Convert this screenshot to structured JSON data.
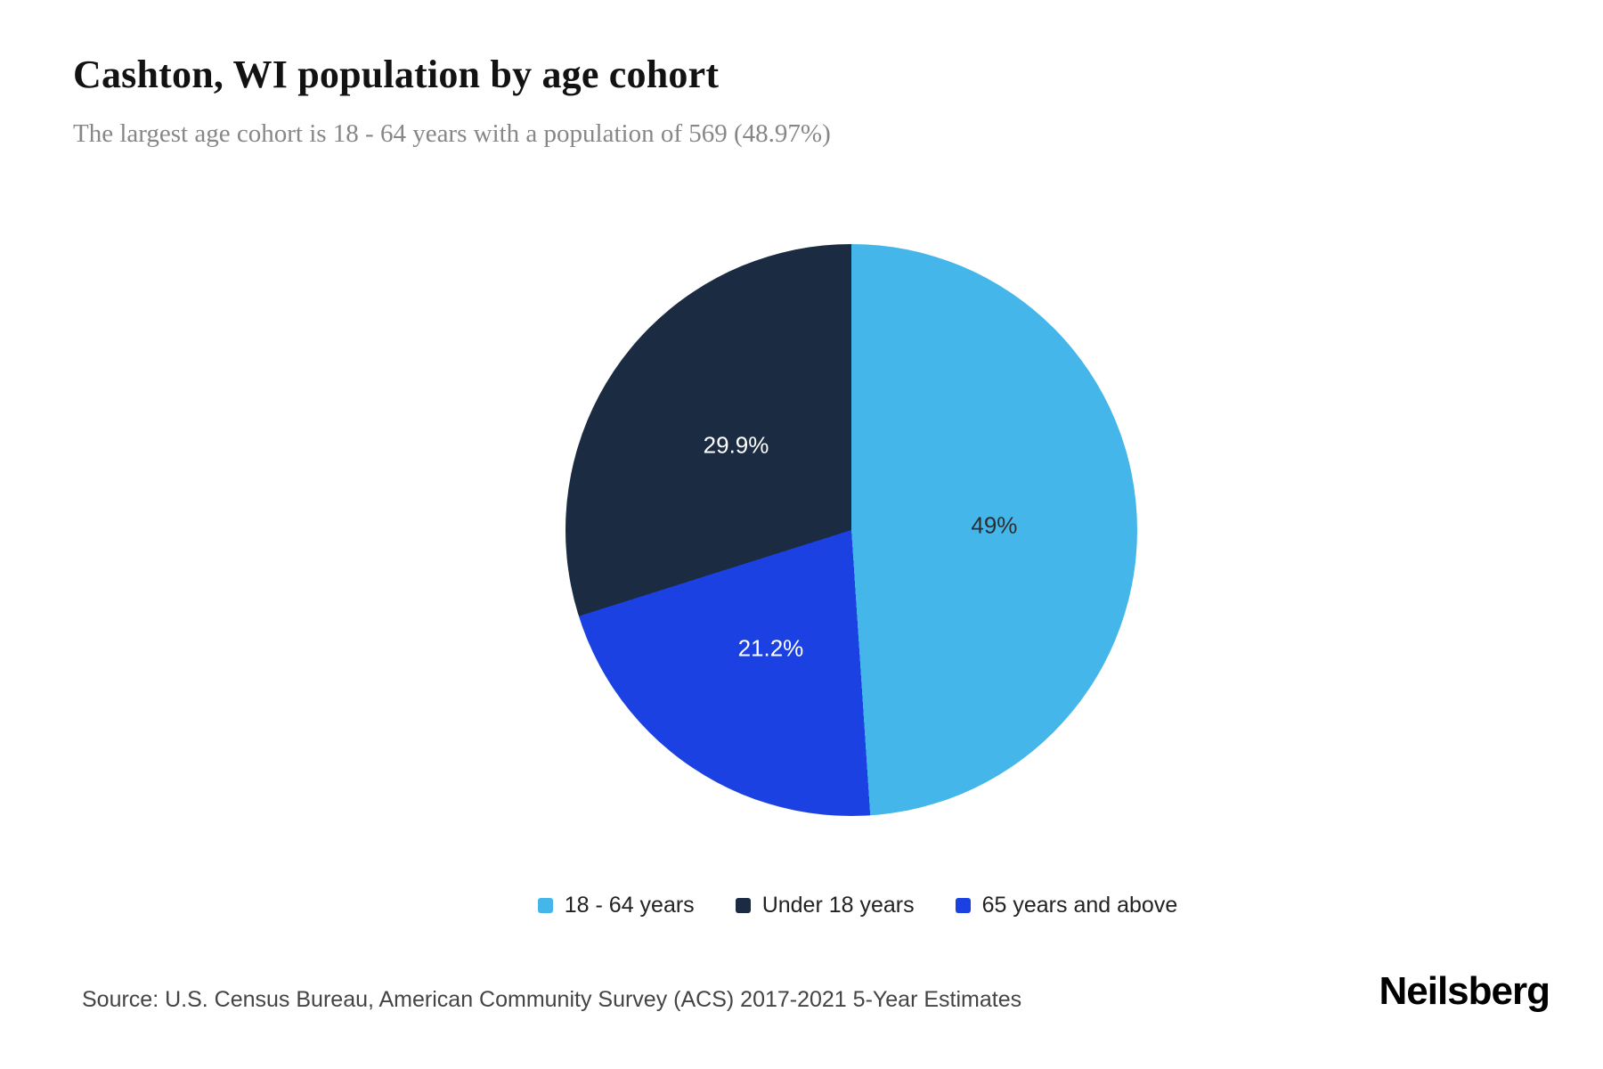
{
  "header": {
    "title": "Cashton, WI population by age cohort",
    "subtitle": "The largest age cohort is 18 - 64 years with a population of 569 (48.97%)"
  },
  "chart_data": {
    "type": "pie",
    "title": "Cashton, WI population by age cohort",
    "start_angle_deg": 0,
    "direction": "clockwise",
    "slices": [
      {
        "label": "18 - 64 years",
        "value": 49,
        "display": "49%",
        "color": "#45B6EA",
        "label_color": "#2d2d2d"
      },
      {
        "label": "65 years and above",
        "value": 21.2,
        "display": "21.2%",
        "color": "#1C41E3",
        "label_color": "#ffffff"
      },
      {
        "label": "Under 18 years",
        "value": 29.9,
        "display": "29.9%",
        "color": "#1B2B41",
        "label_color": "#ffffff"
      }
    ],
    "legend": [
      {
        "label": "18 - 64 years",
        "color": "#45B6EA"
      },
      {
        "label": "Under 18 years",
        "color": "#1B2B41"
      },
      {
        "label": "65 years and above",
        "color": "#1C41E3"
      }
    ],
    "legend_position": "bottom",
    "annotations": {
      "largest_cohort": "18 - 64 years",
      "largest_population": 569,
      "largest_share_pct": 48.97
    }
  },
  "footer": {
    "source": "Source: U.S. Census Bureau, American Community Survey (ACS) 2017-2021 5-Year Estimates",
    "brand": "Neilsberg"
  }
}
